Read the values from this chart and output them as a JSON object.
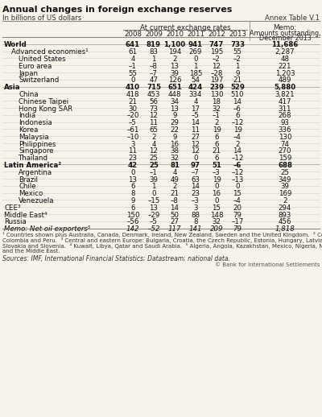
{
  "title": "Annual changes in foreign exchange reserves",
  "subtitle": "In billions of US dollars",
  "annex": "Annex Table V.1",
  "col_header1": "At current exchange rates",
  "years": [
    "2008",
    "2009",
    "2010",
    "2011",
    "2012",
    "2013"
  ],
  "rows": [
    {
      "label": "World",
      "indent": 0,
      "bold": true,
      "italic": false,
      "values": [
        "641",
        "819",
        "1,100",
        "941",
        "747",
        "733"
      ],
      "memo": "11,686"
    },
    {
      "label": "Advanced economies¹",
      "indent": 1,
      "bold": false,
      "italic": false,
      "values": [
        "61",
        "83",
        "194",
        "269",
        "195",
        "55"
      ],
      "memo": "2,287"
    },
    {
      "label": "United States",
      "indent": 2,
      "bold": false,
      "italic": false,
      "values": [
        "4",
        "1",
        "2",
        "0",
        "–2",
        "–2"
      ],
      "memo": "48"
    },
    {
      "label": "Euro area",
      "indent": 2,
      "bold": false,
      "italic": false,
      "values": [
        "–1",
        "–8",
        "13",
        "1",
        "12",
        "1"
      ],
      "memo": "221"
    },
    {
      "label": "Japan",
      "indent": 2,
      "bold": false,
      "italic": false,
      "values": [
        "55",
        "–7",
        "39",
        "185",
        "–28",
        "9"
      ],
      "memo": "1,203"
    },
    {
      "label": "Switzerland",
      "indent": 2,
      "bold": false,
      "italic": false,
      "values": [
        "0",
        "47",
        "126",
        "54",
        "197",
        "21"
      ],
      "memo": "489"
    },
    {
      "label": "Asia",
      "indent": 0,
      "bold": true,
      "italic": false,
      "values": [
        "410",
        "715",
        "651",
        "424",
        "239",
        "529"
      ],
      "memo": "5,880"
    },
    {
      "label": "China",
      "indent": 2,
      "bold": false,
      "italic": false,
      "values": [
        "418",
        "453",
        "448",
        "334",
        "130",
        "510"
      ],
      "memo": "3,821"
    },
    {
      "label": "Chinese Taipei",
      "indent": 2,
      "bold": false,
      "italic": false,
      "values": [
        "21",
        "56",
        "34",
        "4",
        "18",
        "14"
      ],
      "memo": "417"
    },
    {
      "label": "Hong Kong SAR",
      "indent": 2,
      "bold": false,
      "italic": false,
      "values": [
        "30",
        "73",
        "13",
        "17",
        "32",
        "–6"
      ],
      "memo": "311"
    },
    {
      "label": "India",
      "indent": 2,
      "bold": false,
      "italic": false,
      "values": [
        "–20",
        "12",
        "9",
        "–5",
        "–1",
        "6"
      ],
      "memo": "268"
    },
    {
      "label": "Indonesia",
      "indent": 2,
      "bold": false,
      "italic": false,
      "values": [
        "–5",
        "11",
        "29",
        "14",
        "2",
        "–12"
      ],
      "memo": "93"
    },
    {
      "label": "Korea",
      "indent": 2,
      "bold": false,
      "italic": false,
      "values": [
        "–61",
        "65",
        "22",
        "11",
        "19",
        "19"
      ],
      "memo": "336"
    },
    {
      "label": "Malaysia",
      "indent": 2,
      "bold": false,
      "italic": false,
      "values": [
        "–10",
        "2",
        "9",
        "27",
        "6",
        "–4"
      ],
      "memo": "130"
    },
    {
      "label": "Philippines",
      "indent": 2,
      "bold": false,
      "italic": false,
      "values": [
        "3",
        "4",
        "16",
        "12",
        "6",
        "2"
      ],
      "memo": "74"
    },
    {
      "label": "Singapore",
      "indent": 2,
      "bold": false,
      "italic": false,
      "values": [
        "11",
        "12",
        "38",
        "12",
        "21",
        "14"
      ],
      "memo": "270"
    },
    {
      "label": "Thailand",
      "indent": 2,
      "bold": false,
      "italic": false,
      "values": [
        "23",
        "25",
        "32",
        "0",
        "6",
        "–12"
      ],
      "memo": "159"
    },
    {
      "label": "Latin America²",
      "indent": 0,
      "bold": true,
      "italic": false,
      "values": [
        "42",
        "25",
        "81",
        "97",
        "51",
        "–6"
      ],
      "memo": "688"
    },
    {
      "label": "Argentina",
      "indent": 2,
      "bold": false,
      "italic": false,
      "values": [
        "0",
        "–1",
        "4",
        "–7",
        "–3",
        "–12"
      ],
      "memo": "25"
    },
    {
      "label": "Brazil",
      "indent": 2,
      "bold": false,
      "italic": false,
      "values": [
        "13",
        "39",
        "49",
        "63",
        "19",
        "–13"
      ],
      "memo": "349"
    },
    {
      "label": "Chile",
      "indent": 2,
      "bold": false,
      "italic": false,
      "values": [
        "6",
        "1",
        "2",
        "14",
        "0",
        "0"
      ],
      "memo": "39"
    },
    {
      "label": "Mexico",
      "indent": 2,
      "bold": false,
      "italic": false,
      "values": [
        "8",
        "0",
        "21",
        "23",
        "16",
        "15"
      ],
      "memo": "169"
    },
    {
      "label": "Venezuela",
      "indent": 2,
      "bold": false,
      "italic": false,
      "values": [
        "9",
        "–15",
        "–8",
        "–3",
        "0",
        "–4"
      ],
      "memo": "2"
    },
    {
      "label": "CEE³",
      "indent": 0,
      "bold": false,
      "italic": false,
      "values": [
        "6",
        "13",
        "14",
        "3",
        "15",
        "20"
      ],
      "memo": "294"
    },
    {
      "label": "Middle East⁴",
      "indent": 0,
      "bold": false,
      "italic": false,
      "values": [
        "150",
        "–29",
        "50",
        "88",
        "148",
        "79"
      ],
      "memo": "893"
    },
    {
      "label": "Russia",
      "indent": 0,
      "bold": false,
      "italic": false,
      "values": [
        "–56",
        "–5",
        "27",
        "8",
        "32",
        "–17"
      ],
      "memo": "456"
    },
    {
      "label": "Memo: Net oil exporters⁵",
      "indent": 0,
      "bold": false,
      "italic": true,
      "values": [
        "142",
        "–52",
        "117",
        "141",
        "209",
        "79"
      ],
      "memo": "1,818"
    }
  ],
  "footnote_lines": [
    "¹ Countries shown plus Australia, Canada, Denmark, Ireland, New Zealand, Sweden and the United Kingdom.  ² Countries shown plus",
    "Colombia and Peru.  ³ Central and eastern Europe: Bulgaria, Croatia, the Czech Republic, Estonia, Hungary, Latvia, Lithuania, Poland, Romania,",
    "Slovakia and Slovenia.  ⁴ Kuwait, Libya, Qatar and Saudi Arabia.  ⁵ Algeria, Angola, Kazakhstan, Mexico, Nigeria, Norway, Russia, Venezuela",
    "and the Middle East."
  ],
  "source": "Sources: IMF, International Financial Statistics; Datastream; national data.",
  "copyright": "© Bank for International Settlements",
  "bg_color": "#f7f3eb"
}
